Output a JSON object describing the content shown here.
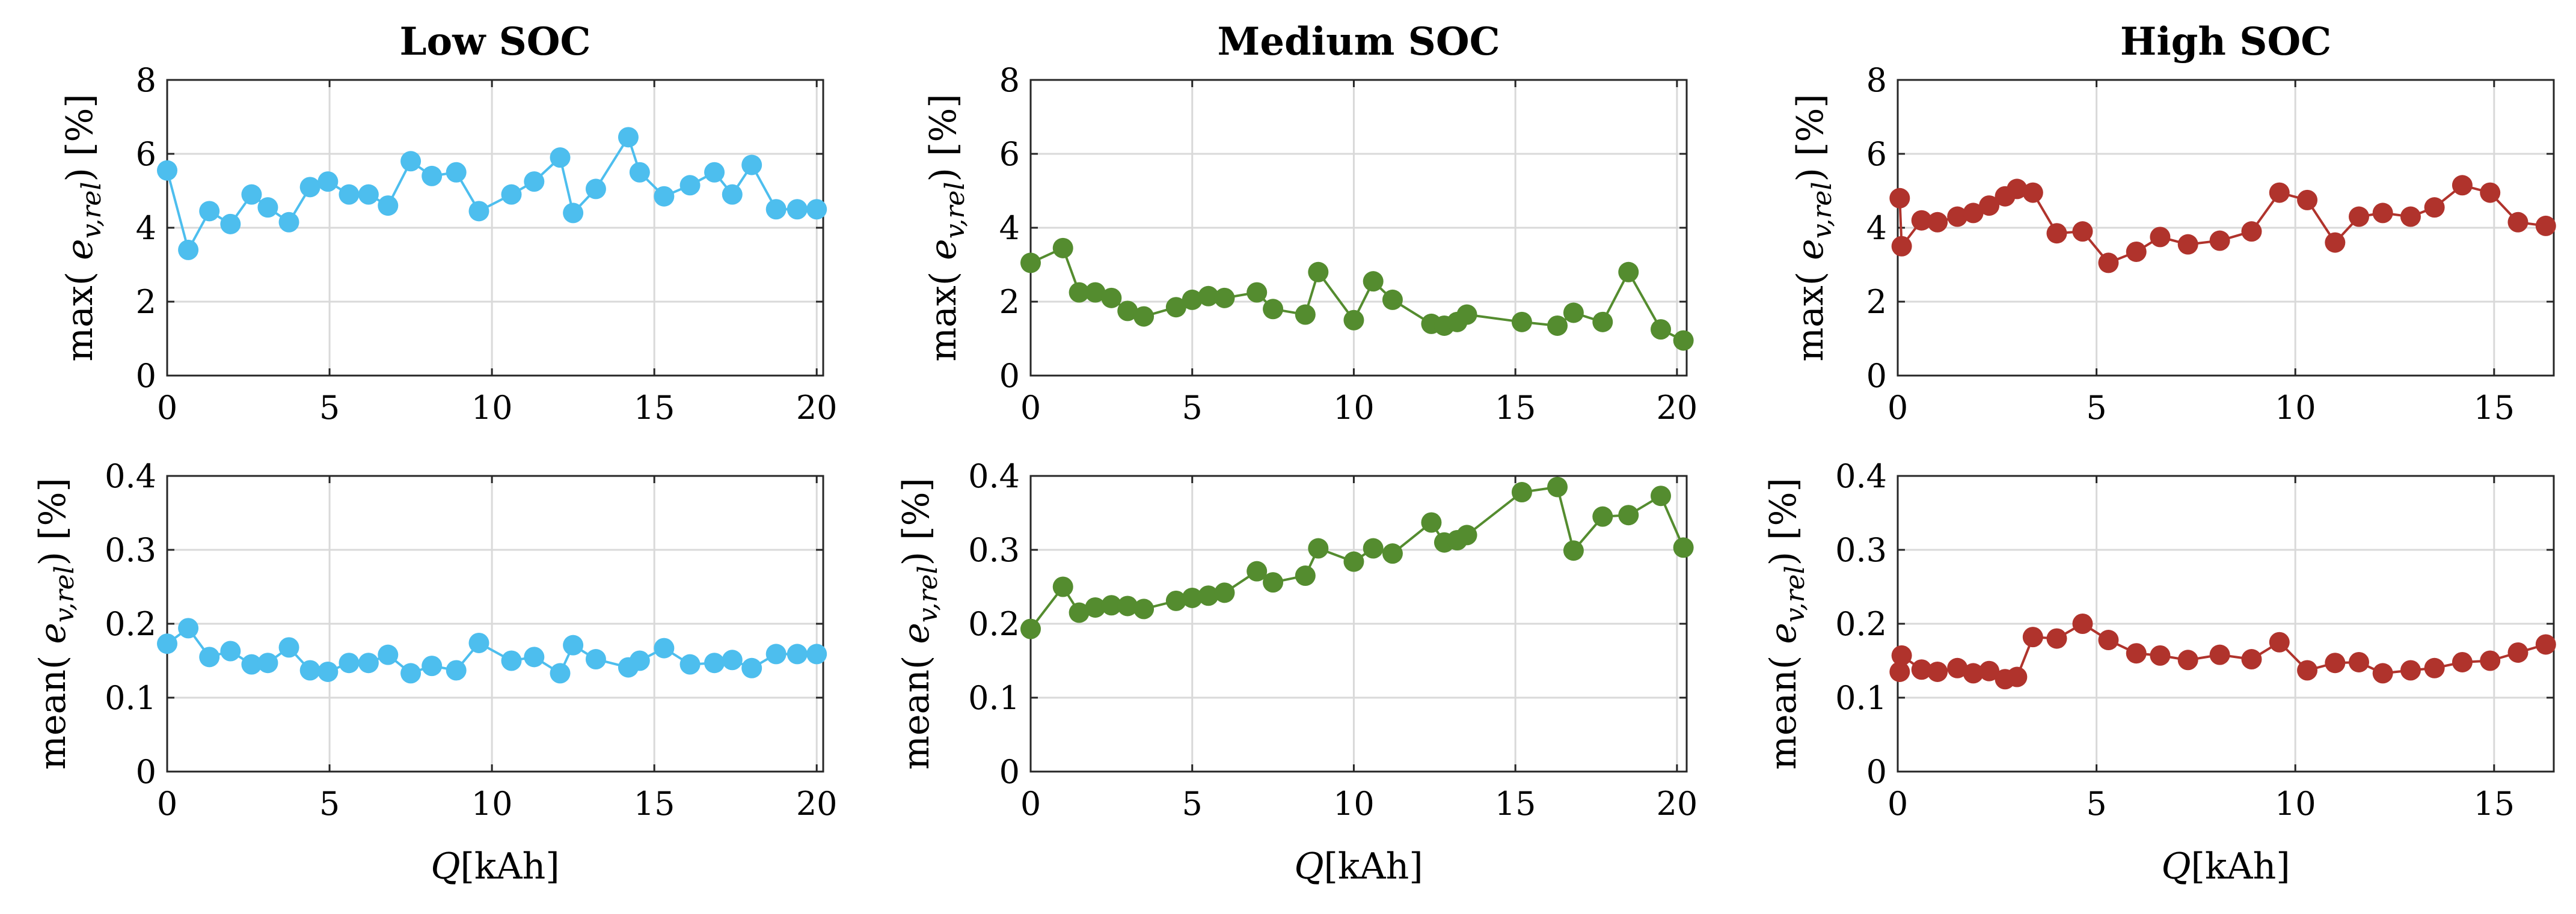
{
  "figure": {
    "xlabel_var": "Q",
    "xlabel_unit": "[kAh]"
  },
  "chart_data": [
    {
      "id": "low-max",
      "type": "line",
      "title": "Low SOC",
      "ylabel": {
        "fn": "max( e",
        "sub": "v,rel",
        "rest": ") [%]"
      },
      "color": "#4DBEEE",
      "xlim": [
        0,
        20.2
      ],
      "ylim": [
        0,
        8
      ],
      "xticks": [
        0,
        5,
        10,
        15,
        20
      ],
      "yticks": [
        0,
        2,
        4,
        6,
        8
      ],
      "xticklabels": [
        "0",
        "5",
        "10",
        "15",
        "20"
      ],
      "yticklabels": [
        "0",
        "2",
        "4",
        "6",
        "8"
      ],
      "x": [
        0,
        0.65,
        1.3,
        1.95,
        2.6,
        3.1,
        3.75,
        4.4,
        4.95,
        5.6,
        6.2,
        6.8,
        7.5,
        8.15,
        8.9,
        9.6,
        10.6,
        11.3,
        12.1,
        12.5,
        13.2,
        14.2,
        14.55,
        15.3,
        16.1,
        16.85,
        17.4,
        18.0,
        18.75,
        19.4,
        20.0
      ],
      "y": [
        5.55,
        3.4,
        4.45,
        4.1,
        4.9,
        4.55,
        4.15,
        5.1,
        5.25,
        4.9,
        4.9,
        4.6,
        5.8,
        5.4,
        5.5,
        4.45,
        4.9,
        5.25,
        5.9,
        4.4,
        5.05,
        6.45,
        5.5,
        4.85,
        5.15,
        5.5,
        4.9,
        5.7,
        4.5,
        4.5,
        4.5
      ]
    },
    {
      "id": "low-mean",
      "type": "line",
      "ylabel": {
        "fn": "mean( e",
        "sub": "v,rel",
        "rest": ") [%]"
      },
      "color": "#4DBEEE",
      "xlim": [
        0,
        20.2
      ],
      "ylim": [
        0,
        0.4
      ],
      "xticks": [
        0,
        5,
        10,
        15,
        20
      ],
      "yticks": [
        0,
        0.1,
        0.2,
        0.3,
        0.4
      ],
      "xticklabels": [
        "0",
        "5",
        "10",
        "15",
        "20"
      ],
      "yticklabels": [
        "0",
        "0.1",
        "0.2",
        "0.3",
        "0.4"
      ],
      "x": [
        0,
        0.65,
        1.3,
        1.95,
        2.6,
        3.1,
        3.75,
        4.4,
        4.95,
        5.6,
        6.2,
        6.8,
        7.5,
        8.15,
        8.9,
        9.6,
        10.6,
        11.3,
        12.1,
        12.5,
        13.2,
        14.2,
        14.55,
        15.3,
        16.1,
        16.85,
        17.4,
        18.0,
        18.75,
        19.4,
        20.0
      ],
      "y": [
        0.173,
        0.194,
        0.155,
        0.163,
        0.145,
        0.147,
        0.168,
        0.137,
        0.135,
        0.147,
        0.147,
        0.158,
        0.133,
        0.143,
        0.137,
        0.174,
        0.15,
        0.155,
        0.133,
        0.171,
        0.152,
        0.141,
        0.15,
        0.167,
        0.145,
        0.147,
        0.151,
        0.14,
        0.159,
        0.159,
        0.159
      ]
    },
    {
      "id": "med-max",
      "type": "line",
      "title": "Medium SOC",
      "ylabel": {
        "fn": "max( e",
        "sub": "v,rel",
        "rest": ") [%]"
      },
      "color": "#548C2F",
      "xlim": [
        0,
        20.3
      ],
      "ylim": [
        0,
        8
      ],
      "xticks": [
        0,
        5,
        10,
        15,
        20
      ],
      "yticks": [
        0,
        2,
        4,
        6,
        8
      ],
      "xticklabels": [
        "0",
        "5",
        "10",
        "15",
        "20"
      ],
      "yticklabels": [
        "0",
        "2",
        "4",
        "6",
        "8"
      ],
      "x": [
        0,
        1.0,
        1.5,
        2.0,
        2.5,
        3.0,
        3.5,
        4.5,
        5.0,
        5.5,
        6.0,
        7.0,
        7.5,
        8.5,
        8.9,
        10.0,
        10.6,
        11.2,
        12.4,
        12.8,
        13.2,
        13.5,
        15.2,
        16.3,
        16.8,
        17.7,
        18.5,
        19.5,
        20.2
      ],
      "y": [
        3.05,
        3.45,
        2.25,
        2.25,
        2.1,
        1.75,
        1.6,
        1.85,
        2.05,
        2.15,
        2.1,
        2.25,
        1.8,
        1.65,
        2.8,
        1.5,
        2.55,
        2.05,
        1.4,
        1.35,
        1.45,
        1.65,
        1.45,
        1.35,
        1.7,
        1.45,
        2.8,
        1.25,
        0.95
      ]
    },
    {
      "id": "med-mean",
      "type": "line",
      "ylabel": {
        "fn": "mean( e",
        "sub": "v,rel",
        "rest": ") [%]"
      },
      "color": "#548C2F",
      "xlim": [
        0,
        20.3
      ],
      "ylim": [
        0,
        0.4
      ],
      "xticks": [
        0,
        5,
        10,
        15,
        20
      ],
      "yticks": [
        0,
        0.1,
        0.2,
        0.3,
        0.4
      ],
      "xticklabels": [
        "0",
        "5",
        "10",
        "15",
        "20"
      ],
      "yticklabels": [
        "0",
        "0.1",
        "0.2",
        "0.3",
        "0.4"
      ],
      "x": [
        0,
        1.0,
        1.5,
        2.0,
        2.5,
        3.0,
        3.5,
        4.5,
        5.0,
        5.5,
        6.0,
        7.0,
        7.5,
        8.5,
        8.9,
        10.0,
        10.6,
        11.2,
        12.4,
        12.8,
        13.2,
        13.5,
        15.2,
        16.3,
        16.8,
        17.7,
        18.5,
        19.5,
        20.2
      ],
      "y": [
        0.193,
        0.25,
        0.215,
        0.222,
        0.225,
        0.224,
        0.22,
        0.231,
        0.235,
        0.238,
        0.242,
        0.271,
        0.256,
        0.265,
        0.302,
        0.284,
        0.302,
        0.295,
        0.337,
        0.31,
        0.313,
        0.32,
        0.378,
        0.385,
        0.299,
        0.345,
        0.347,
        0.373,
        0.303
      ]
    },
    {
      "id": "high-max",
      "type": "line",
      "title": "High SOC",
      "ylabel": {
        "fn": "max( e",
        "sub": "v,rel",
        "rest": ") [%]"
      },
      "color": "#B0332C",
      "xlim": [
        0,
        16.5
      ],
      "ylim": [
        0,
        8
      ],
      "xticks": [
        0,
        5,
        10,
        15
      ],
      "yticks": [
        0,
        2,
        4,
        6,
        8
      ],
      "xticklabels": [
        "0",
        "5",
        "10",
        "15"
      ],
      "yticklabels": [
        "0",
        "2",
        "4",
        "6",
        "8"
      ],
      "x": [
        0.05,
        0.1,
        0.6,
        1.0,
        1.5,
        1.9,
        2.3,
        2.7,
        3.0,
        3.4,
        4.0,
        4.65,
        5.3,
        6.0,
        6.6,
        7.3,
        8.1,
        8.9,
        9.6,
        10.3,
        11.0,
        11.6,
        12.2,
        12.9,
        13.5,
        14.2,
        14.9,
        15.6,
        16.3
      ],
      "y": [
        4.8,
        3.5,
        4.2,
        4.15,
        4.3,
        4.4,
        4.6,
        4.85,
        5.05,
        4.95,
        3.85,
        3.9,
        3.05,
        3.35,
        3.75,
        3.55,
        3.65,
        3.9,
        4.95,
        4.75,
        3.6,
        4.3,
        4.4,
        4.3,
        4.55,
        5.15,
        4.95,
        4.15,
        4.05
      ]
    },
    {
      "id": "high-mean",
      "type": "line",
      "ylabel": {
        "fn": "mean( e",
        "sub": "v,rel",
        "rest": ") [%]"
      },
      "color": "#B0332C",
      "xlim": [
        0,
        16.5
      ],
      "ylim": [
        0,
        0.4
      ],
      "xticks": [
        0,
        5,
        10,
        15
      ],
      "yticks": [
        0,
        0.1,
        0.2,
        0.3,
        0.4
      ],
      "xticklabels": [
        "0",
        "5",
        "10",
        "15"
      ],
      "yticklabels": [
        "0",
        "0.1",
        "0.2",
        "0.3",
        "0.4"
      ],
      "x": [
        0.05,
        0.1,
        0.6,
        1.0,
        1.5,
        1.9,
        2.3,
        2.7,
        3.0,
        3.4,
        4.0,
        4.65,
        5.3,
        6.0,
        6.6,
        7.3,
        8.1,
        8.9,
        9.6,
        10.3,
        11.0,
        11.6,
        12.2,
        12.9,
        13.5,
        14.2,
        14.9,
        15.6,
        16.3
      ],
      "y": [
        0.135,
        0.157,
        0.138,
        0.135,
        0.14,
        0.133,
        0.136,
        0.125,
        0.128,
        0.182,
        0.18,
        0.2,
        0.178,
        0.16,
        0.157,
        0.151,
        0.158,
        0.152,
        0.175,
        0.137,
        0.147,
        0.148,
        0.133,
        0.137,
        0.14,
        0.148,
        0.15,
        0.161,
        0.172
      ]
    }
  ]
}
